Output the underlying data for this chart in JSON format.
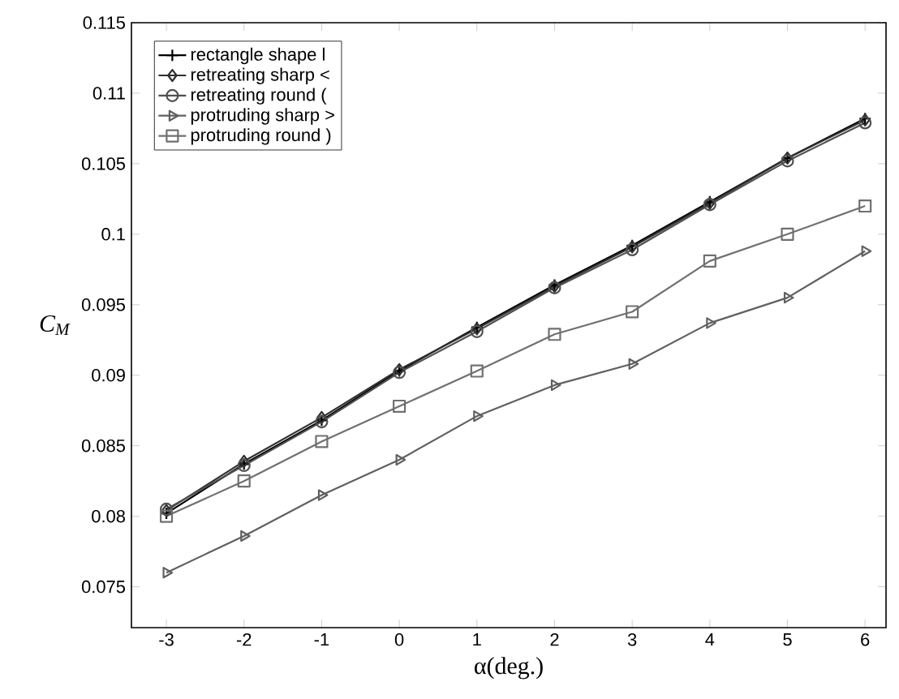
{
  "chart_data": {
    "type": "line",
    "xlabel": "α(deg.)",
    "ylabel": "C$_{M}$",
    "x": [
      -3,
      -2,
      -1,
      0,
      1,
      2,
      3,
      4,
      5,
      6
    ],
    "series": [
      {
        "name": "rectangle shape l",
        "color": "#000000",
        "marker": "cross",
        "values": [
          0.0802,
          0.0837,
          0.0868,
          0.0903,
          0.0934,
          0.0964,
          0.0992,
          0.1023,
          0.1054,
          0.1082
        ]
      },
      {
        "name": "retreating sharp <",
        "color": "#303030",
        "marker": "diamond",
        "values": [
          0.0804,
          0.0839,
          0.087,
          0.0904,
          0.0933,
          0.0963,
          0.0991,
          0.1022,
          0.1054,
          0.1081
        ]
      },
      {
        "name": "retreating round (",
        "color": "#505050",
        "marker": "circle",
        "values": [
          0.0805,
          0.0836,
          0.0867,
          0.0902,
          0.0931,
          0.0962,
          0.0989,
          0.1021,
          0.1052,
          0.1079
        ]
      },
      {
        "name": "protruding sharp >",
        "color": "#606060",
        "marker": "triangle",
        "values": [
          0.076,
          0.0786,
          0.0815,
          0.084,
          0.0871,
          0.0893,
          0.0908,
          0.0937,
          0.0955,
          0.0988
        ]
      },
      {
        "name": "protruding round )",
        "color": "#707070",
        "marker": "square",
        "values": [
          0.08,
          0.0825,
          0.0853,
          0.0878,
          0.0903,
          0.0929,
          0.0945,
          0.0981,
          0.1,
          0.102
        ]
      }
    ],
    "xlim": [
      -3.45,
      6.27
    ],
    "ylim": [
      0.0721,
      0.115
    ],
    "xticks": [
      -3,
      -2,
      -1,
      0,
      1,
      2,
      3,
      4,
      5,
      6
    ],
    "yticks": [
      0.075,
      0.08,
      0.085,
      0.09,
      0.095,
      0.1,
      0.105,
      0.11,
      0.115
    ],
    "legend": "top left",
    "grid": false,
    "line_style": "solid"
  }
}
